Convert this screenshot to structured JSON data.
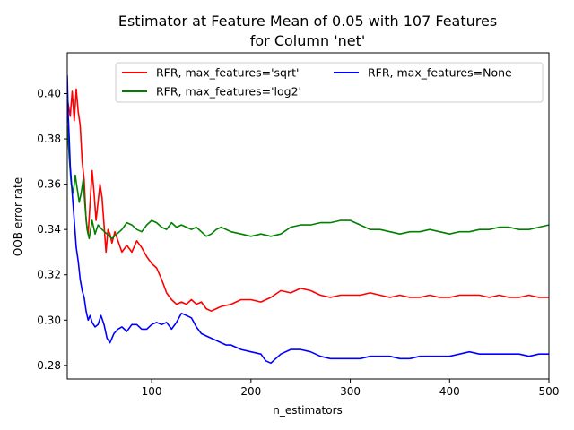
{
  "chart_data": {
    "type": "line",
    "title": [
      "Estimator at Feature Mean of 0.05 with 107 Features",
      "for Column 'net'"
    ],
    "xlabel": "n_estimators",
    "ylabel": "OOB error rate",
    "xlim": [
      15,
      500
    ],
    "ylim": [
      0.274,
      0.418
    ],
    "xticks": [
      100,
      200,
      300,
      400,
      500
    ],
    "yticks": [
      0.28,
      0.3,
      0.32,
      0.34,
      0.36,
      0.38,
      0.4
    ],
    "ytick_labels": [
      "0.28",
      "0.30",
      "0.32",
      "0.34",
      "0.36",
      "0.38",
      "0.40"
    ],
    "grid": false,
    "legend_position": "top-right",
    "series": [
      {
        "name": "RFR, max_features='sqrt'",
        "color": "#ff0000",
        "points": [
          [
            15,
            0.398
          ],
          [
            18,
            0.39
          ],
          [
            20,
            0.401
          ],
          [
            22,
            0.388
          ],
          [
            24,
            0.402
          ],
          [
            26,
            0.392
          ],
          [
            28,
            0.386
          ],
          [
            30,
            0.37
          ],
          [
            32,
            0.362
          ],
          [
            34,
            0.344
          ],
          [
            36,
            0.338
          ],
          [
            38,
            0.352
          ],
          [
            40,
            0.366
          ],
          [
            42,
            0.356
          ],
          [
            44,
            0.344
          ],
          [
            46,
            0.352
          ],
          [
            48,
            0.36
          ],
          [
            50,
            0.354
          ],
          [
            52,
            0.342
          ],
          [
            54,
            0.33
          ],
          [
            56,
            0.34
          ],
          [
            58,
            0.338
          ],
          [
            60,
            0.334
          ],
          [
            63,
            0.339
          ],
          [
            66,
            0.335
          ],
          [
            70,
            0.33
          ],
          [
            75,
            0.333
          ],
          [
            80,
            0.33
          ],
          [
            85,
            0.335
          ],
          [
            90,
            0.332
          ],
          [
            95,
            0.328
          ],
          [
            100,
            0.325
          ],
          [
            105,
            0.323
          ],
          [
            110,
            0.318
          ],
          [
            115,
            0.312
          ],
          [
            120,
            0.309
          ],
          [
            125,
            0.307
          ],
          [
            130,
            0.308
          ],
          [
            135,
            0.307
          ],
          [
            140,
            0.309
          ],
          [
            145,
            0.307
          ],
          [
            150,
            0.308
          ],
          [
            155,
            0.305
          ],
          [
            160,
            0.304
          ],
          [
            165,
            0.305
          ],
          [
            170,
            0.306
          ],
          [
            180,
            0.307
          ],
          [
            190,
            0.309
          ],
          [
            200,
            0.309
          ],
          [
            210,
            0.308
          ],
          [
            220,
            0.31
          ],
          [
            230,
            0.313
          ],
          [
            240,
            0.312
          ],
          [
            250,
            0.314
          ],
          [
            260,
            0.313
          ],
          [
            270,
            0.311
          ],
          [
            280,
            0.31
          ],
          [
            290,
            0.311
          ],
          [
            300,
            0.311
          ],
          [
            310,
            0.311
          ],
          [
            320,
            0.312
          ],
          [
            330,
            0.311
          ],
          [
            340,
            0.31
          ],
          [
            350,
            0.311
          ],
          [
            360,
            0.31
          ],
          [
            370,
            0.31
          ],
          [
            380,
            0.311
          ],
          [
            390,
            0.31
          ],
          [
            400,
            0.31
          ],
          [
            410,
            0.311
          ],
          [
            420,
            0.311
          ],
          [
            430,
            0.311
          ],
          [
            440,
            0.31
          ],
          [
            450,
            0.311
          ],
          [
            460,
            0.31
          ],
          [
            470,
            0.31
          ],
          [
            480,
            0.311
          ],
          [
            490,
            0.31
          ],
          [
            500,
            0.31
          ]
        ]
      },
      {
        "name": "RFR, max_features='log2'",
        "color": "#008000",
        "points": [
          [
            15,
            0.386
          ],
          [
            17,
            0.372
          ],
          [
            19,
            0.36
          ],
          [
            21,
            0.356
          ],
          [
            23,
            0.364
          ],
          [
            25,
            0.358
          ],
          [
            27,
            0.352
          ],
          [
            29,
            0.356
          ],
          [
            31,
            0.362
          ],
          [
            33,
            0.35
          ],
          [
            35,
            0.34
          ],
          [
            37,
            0.336
          ],
          [
            40,
            0.344
          ],
          [
            43,
            0.338
          ],
          [
            46,
            0.342
          ],
          [
            50,
            0.34
          ],
          [
            55,
            0.338
          ],
          [
            60,
            0.336
          ],
          [
            65,
            0.338
          ],
          [
            70,
            0.34
          ],
          [
            75,
            0.343
          ],
          [
            80,
            0.342
          ],
          [
            85,
            0.34
          ],
          [
            90,
            0.339
          ],
          [
            95,
            0.342
          ],
          [
            100,
            0.344
          ],
          [
            105,
            0.343
          ],
          [
            110,
            0.341
          ],
          [
            115,
            0.34
          ],
          [
            120,
            0.343
          ],
          [
            125,
            0.341
          ],
          [
            130,
            0.342
          ],
          [
            135,
            0.341
          ],
          [
            140,
            0.34
          ],
          [
            145,
            0.341
          ],
          [
            150,
            0.339
          ],
          [
            155,
            0.337
          ],
          [
            160,
            0.338
          ],
          [
            165,
            0.34
          ],
          [
            170,
            0.341
          ],
          [
            180,
            0.339
          ],
          [
            190,
            0.338
          ],
          [
            200,
            0.337
          ],
          [
            210,
            0.338
          ],
          [
            220,
            0.337
          ],
          [
            230,
            0.338
          ],
          [
            240,
            0.341
          ],
          [
            250,
            0.342
          ],
          [
            260,
            0.342
          ],
          [
            270,
            0.343
          ],
          [
            280,
            0.343
          ],
          [
            290,
            0.344
          ],
          [
            300,
            0.344
          ],
          [
            310,
            0.342
          ],
          [
            320,
            0.34
          ],
          [
            330,
            0.34
          ],
          [
            340,
            0.339
          ],
          [
            350,
            0.338
          ],
          [
            360,
            0.339
          ],
          [
            370,
            0.339
          ],
          [
            380,
            0.34
          ],
          [
            390,
            0.339
          ],
          [
            400,
            0.338
          ],
          [
            410,
            0.339
          ],
          [
            420,
            0.339
          ],
          [
            430,
            0.34
          ],
          [
            440,
            0.34
          ],
          [
            450,
            0.341
          ],
          [
            460,
            0.341
          ],
          [
            470,
            0.34
          ],
          [
            480,
            0.34
          ],
          [
            490,
            0.341
          ],
          [
            500,
            0.342
          ]
        ]
      },
      {
        "name": "RFR, max_features=None",
        "color": "#0000ff",
        "points": [
          [
            15,
            0.408
          ],
          [
            16,
            0.39
          ],
          [
            17,
            0.38
          ],
          [
            18,
            0.368
          ],
          [
            19,
            0.362
          ],
          [
            20,
            0.356
          ],
          [
            22,
            0.344
          ],
          [
            24,
            0.332
          ],
          [
            26,
            0.326
          ],
          [
            28,
            0.318
          ],
          [
            30,
            0.313
          ],
          [
            32,
            0.31
          ],
          [
            34,
            0.304
          ],
          [
            36,
            0.3
          ],
          [
            38,
            0.302
          ],
          [
            40,
            0.299
          ],
          [
            43,
            0.297
          ],
          [
            46,
            0.298
          ],
          [
            49,
            0.302
          ],
          [
            52,
            0.298
          ],
          [
            55,
            0.292
          ],
          [
            58,
            0.29
          ],
          [
            62,
            0.294
          ],
          [
            66,
            0.296
          ],
          [
            70,
            0.297
          ],
          [
            75,
            0.295
          ],
          [
            80,
            0.298
          ],
          [
            85,
            0.298
          ],
          [
            90,
            0.296
          ],
          [
            95,
            0.296
          ],
          [
            100,
            0.298
          ],
          [
            105,
            0.299
          ],
          [
            110,
            0.298
          ],
          [
            115,
            0.299
          ],
          [
            120,
            0.296
          ],
          [
            125,
            0.299
          ],
          [
            130,
            0.303
          ],
          [
            135,
            0.302
          ],
          [
            140,
            0.301
          ],
          [
            145,
            0.297
          ],
          [
            150,
            0.294
          ],
          [
            155,
            0.293
          ],
          [
            160,
            0.292
          ],
          [
            165,
            0.291
          ],
          [
            170,
            0.29
          ],
          [
            175,
            0.289
          ],
          [
            180,
            0.289
          ],
          [
            190,
            0.287
          ],
          [
            200,
            0.286
          ],
          [
            210,
            0.285
          ],
          [
            215,
            0.282
          ],
          [
            220,
            0.281
          ],
          [
            225,
            0.283
          ],
          [
            230,
            0.285
          ],
          [
            240,
            0.287
          ],
          [
            250,
            0.287
          ],
          [
            260,
            0.286
          ],
          [
            270,
            0.284
          ],
          [
            280,
            0.283
          ],
          [
            290,
            0.283
          ],
          [
            300,
            0.283
          ],
          [
            310,
            0.283
          ],
          [
            320,
            0.284
          ],
          [
            330,
            0.284
          ],
          [
            340,
            0.284
          ],
          [
            350,
            0.283
          ],
          [
            360,
            0.283
          ],
          [
            370,
            0.284
          ],
          [
            380,
            0.284
          ],
          [
            390,
            0.284
          ],
          [
            400,
            0.284
          ],
          [
            410,
            0.285
          ],
          [
            420,
            0.286
          ],
          [
            430,
            0.285
          ],
          [
            440,
            0.285
          ],
          [
            450,
            0.285
          ],
          [
            460,
            0.285
          ],
          [
            470,
            0.285
          ],
          [
            480,
            0.284
          ],
          [
            490,
            0.285
          ],
          [
            500,
            0.285
          ]
        ]
      }
    ]
  }
}
